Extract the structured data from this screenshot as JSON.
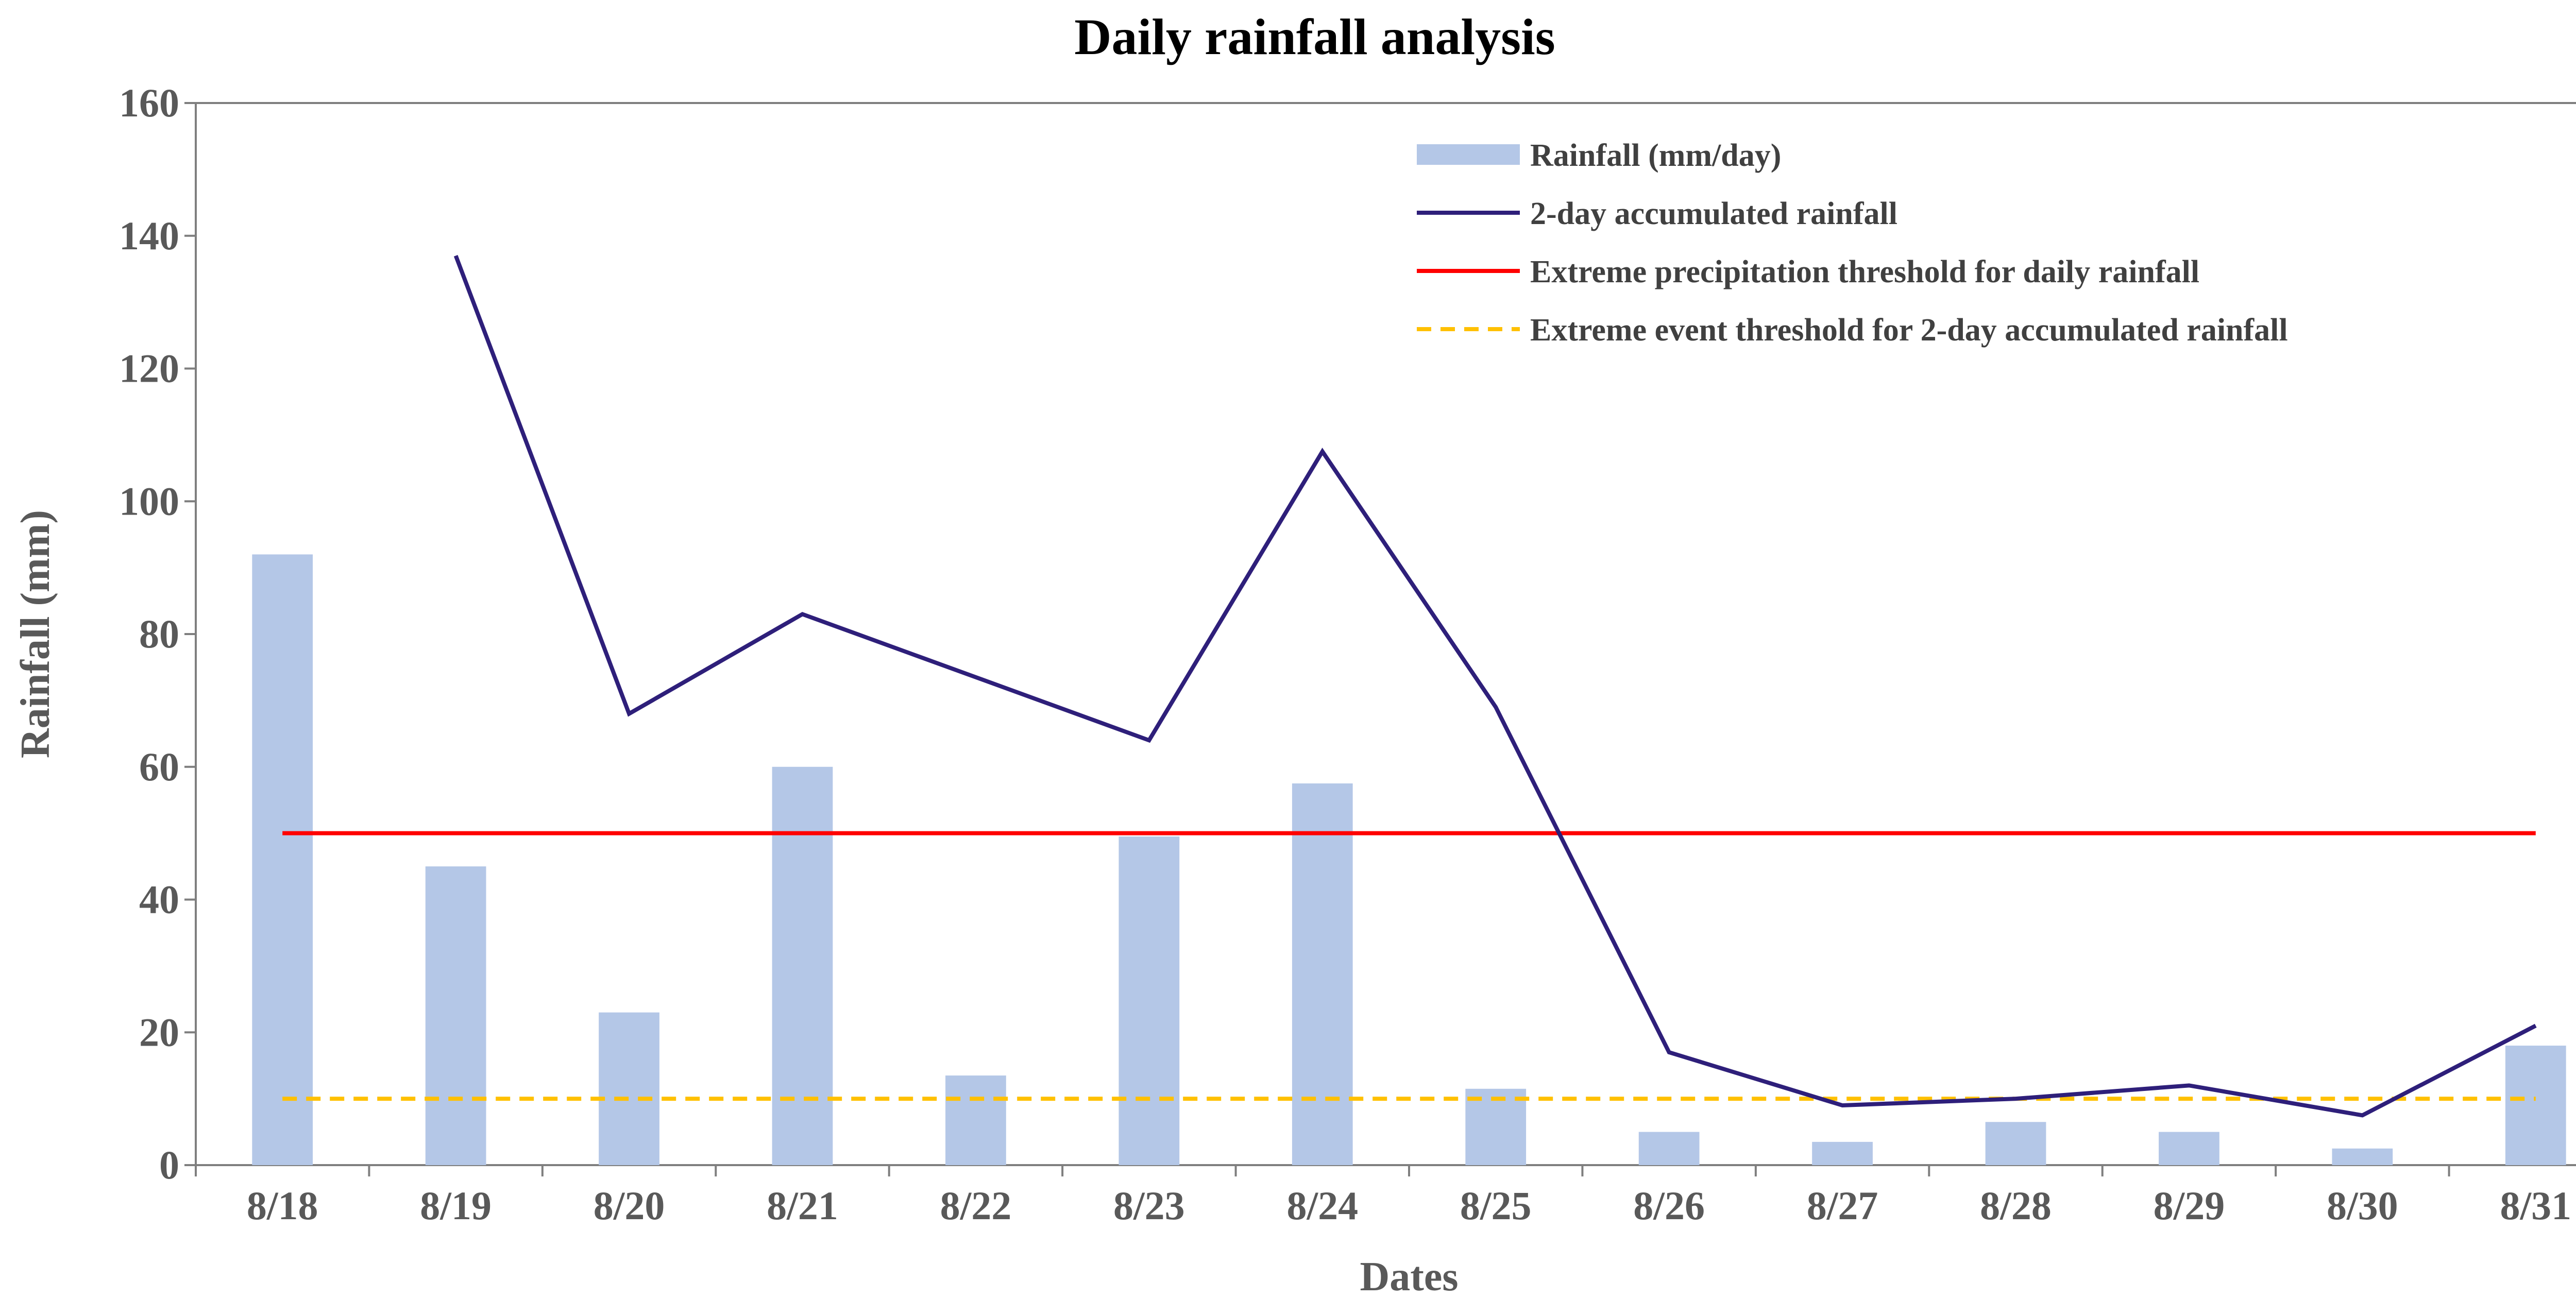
{
  "chart_data": {
    "type": "bar",
    "title": "Daily rainfall analysis",
    "xlabel": "Dates",
    "ylabel": "Rainfall (mm)",
    "ylim": [
      0,
      160
    ],
    "yticks": [
      0,
      20,
      40,
      60,
      80,
      100,
      120,
      140,
      160
    ],
    "grid": false,
    "legend_position": "top-right",
    "categories": [
      "8/18",
      "8/19",
      "8/20",
      "8/21",
      "8/22",
      "8/23",
      "8/24",
      "8/25",
      "8/26",
      "8/27",
      "8/28",
      "8/29",
      "8/30",
      "8/31"
    ],
    "series": [
      {
        "name": "Rainfall (mm/day)",
        "kind": "bar",
        "color": "#b4c7e7",
        "values": [
          92,
          45,
          23,
          60,
          13.5,
          49.5,
          57.5,
          11.5,
          5,
          3.5,
          6.5,
          5,
          2.5,
          18
        ]
      },
      {
        "name": "2-day accumulated rainfall",
        "kind": "line",
        "color": "#2e1f7a",
        "values": [
          null,
          137,
          68,
          83,
          73.5,
          64,
          107.5,
          69,
          17,
          9,
          10,
          12,
          7.5,
          21
        ]
      },
      {
        "name": "Extreme precipitation threshold for daily rainfall",
        "kind": "threshold",
        "color": "#ff0000",
        "dashed": false,
        "value": 50
      },
      {
        "name": "Extreme event threshold for 2-day accumulated rainfall",
        "kind": "threshold",
        "color": "#ffc000",
        "dashed": true,
        "value": 10
      }
    ]
  }
}
